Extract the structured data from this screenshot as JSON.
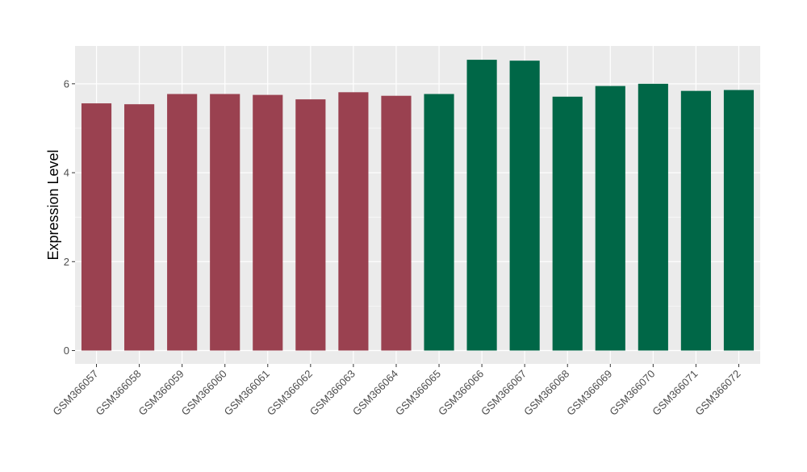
{
  "chart_data": {
    "type": "bar",
    "title": "",
    "xlabel": "",
    "ylabel": "Expression Level",
    "ylim": [
      -0.3,
      6.85
    ],
    "yticks": [
      0,
      2,
      4,
      6
    ],
    "grid": true,
    "legend": "none",
    "categories": [
      "GSM366057",
      "GSM366058",
      "GSM366059",
      "GSM366060",
      "GSM366061",
      "GSM366062",
      "GSM366063",
      "GSM366064",
      "GSM366065",
      "GSM366066",
      "GSM366067",
      "GSM366068",
      "GSM366069",
      "GSM366070",
      "GSM366071",
      "GSM366072"
    ],
    "values": [
      5.56,
      5.54,
      5.77,
      5.77,
      5.75,
      5.65,
      5.81,
      5.73,
      5.77,
      6.54,
      6.52,
      5.71,
      5.95,
      6.0,
      5.84,
      5.86
    ],
    "bar_colors": [
      "#9A4150",
      "#9A4150",
      "#9A4150",
      "#9A4150",
      "#9A4150",
      "#9A4150",
      "#9A4150",
      "#9A4150",
      "#006747",
      "#006747",
      "#006747",
      "#006747",
      "#006747",
      "#006747",
      "#006747",
      "#006747"
    ],
    "panel_background": "#EBEBEB",
    "grid_color": "#FFFFFF"
  }
}
